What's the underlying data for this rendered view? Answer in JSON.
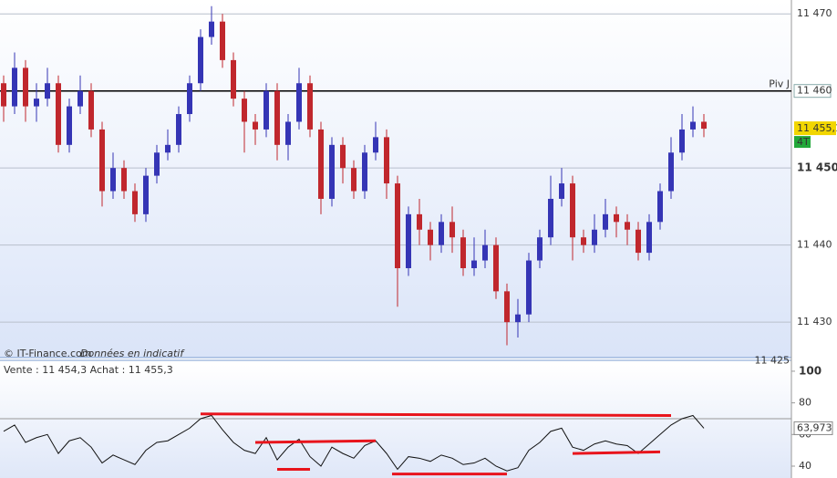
{
  "header": {
    "quote_text": "Vente : 11 454,3 Achat : 11 455,3",
    "source": "© IT-Finance.com",
    "disclaimer": "Données en indicatif"
  },
  "chart_data": [
    {
      "type": "candlestick",
      "open": [
        11461,
        11458,
        11463,
        11458,
        11459,
        11461,
        11453,
        11458,
        11460,
        11455,
        11447,
        11450,
        11447,
        11444,
        11449,
        11452,
        11453,
        11457,
        11461,
        11467,
        11469,
        11464,
        11459,
        11456,
        11455,
        11460,
        11453,
        11456,
        11461,
        11455,
        11446,
        11453,
        11450,
        11447,
        11452,
        11454,
        11448,
        11437,
        11444,
        11442,
        11440,
        11443,
        11441,
        11437,
        11438,
        11440,
        11434,
        11430,
        11431,
        11438,
        11441,
        11446,
        11448,
        11441,
        11440,
        11442,
        11444,
        11443,
        11442,
        11439,
        11443,
        11447,
        11452,
        11455,
        11456
      ],
      "high": [
        11462,
        11465,
        11464,
        11461,
        11463,
        11462,
        11459,
        11462,
        11461,
        11456,
        11452,
        11451,
        11448,
        11450,
        11453,
        11455,
        11458,
        11462,
        11468,
        11471,
        11470,
        11465,
        11460,
        11457,
        11461,
        11461,
        11457,
        11463,
        11462,
        11456,
        11454,
        11454,
        11451,
        11453,
        11456,
        11455,
        11449,
        11445,
        11446,
        11443,
        11444,
        11445,
        11442,
        11441,
        11442,
        11441,
        11435,
        11433,
        11439,
        11442,
        11449,
        11450,
        11449,
        11442,
        11444,
        11446,
        11445,
        11444,
        11443,
        11444,
        11448,
        11454,
        11457,
        11458,
        11457
      ],
      "low": [
        11456,
        11457,
        11456,
        11456,
        11458,
        11452,
        11452,
        11457,
        11454,
        11445,
        11446,
        11446,
        11443,
        11443,
        11448,
        11451,
        11452,
        11456,
        11460,
        11466,
        11463,
        11458,
        11452,
        11453,
        11454,
        11451,
        11451,
        11455,
        11454,
        11444,
        11445,
        11448,
        11446,
        11446,
        11451,
        11446,
        11432,
        11436,
        11440,
        11438,
        11439,
        11439,
        11436,
        11436,
        11437,
        11433,
        11427,
        11428,
        11430,
        11437,
        11440,
        11445,
        11438,
        11439,
        11439,
        11441,
        11441,
        11440,
        11438,
        11438,
        11442,
        11446,
        11451,
        11454,
        11454
      ],
      "close": [
        11458,
        11463,
        11458,
        11459,
        11461,
        11453,
        11458,
        11460,
        11455,
        11447,
        11450,
        11447,
        11444,
        11449,
        11452,
        11453,
        11457,
        11461,
        11467,
        11469,
        11464,
        11459,
        11456,
        11455,
        11460,
        11453,
        11456,
        11461,
        11455,
        11446,
        11453,
        11450,
        11447,
        11452,
        11454,
        11448,
        11437,
        11444,
        11442,
        11440,
        11443,
        11441,
        11437,
        11438,
        11440,
        11434,
        11430,
        11431,
        11438,
        11441,
        11446,
        11448,
        11441,
        11440,
        11442,
        11444,
        11443,
        11442,
        11439,
        11443,
        11447,
        11452,
        11455,
        11456,
        11455.1
      ],
      "up_color": "#3535b5",
      "down_color": "#c0272d",
      "ylim": [
        11425.4,
        11471.8
      ],
      "yticks": [
        {
          "value": 11470,
          "label": "11 470"
        },
        {
          "value": 11450,
          "label": "11 450"
        },
        {
          "value": 11440,
          "label": "11 440"
        },
        {
          "value": 11430,
          "label": "11 430"
        }
      ],
      "bottom_tick": {
        "value": 11425,
        "label": "11 425"
      },
      "grid": true,
      "reference_line": {
        "label": "Piv J",
        "value": 11460,
        "value_label": "11 460"
      },
      "last_price": {
        "value": 11455.1,
        "label": "11 455,1"
      },
      "period_label": "4T"
    },
    {
      "type": "line",
      "values": [
        62,
        66,
        55,
        58,
        60,
        48,
        56,
        58,
        52,
        42,
        47,
        44,
        41,
        50,
        55,
        56,
        60,
        64,
        70,
        72,
        63,
        55,
        50,
        48,
        58,
        44,
        52,
        57,
        46,
        40,
        52,
        48,
        45,
        53,
        56,
        48,
        38,
        46,
        45,
        43,
        47,
        45,
        41,
        42,
        45,
        40,
        37,
        39,
        50,
        55,
        62,
        64,
        52,
        50,
        54,
        56,
        54,
        53,
        48,
        54,
        60,
        66,
        70,
        72,
        63.973
      ],
      "color": "#111111",
      "ylim": [
        32.5,
        104
      ],
      "yticks": [
        100,
        80,
        60,
        40
      ],
      "level": 70,
      "last_value": {
        "value": 63.973,
        "label": "63,973"
      },
      "trendline_color": "#e8141c",
      "trendlines": [
        {
          "x": [
            18,
            61
          ],
          "y": [
            73,
            72
          ]
        },
        {
          "x": [
            23,
            34
          ],
          "y": [
            55,
            56
          ]
        },
        {
          "x": [
            25,
            28
          ],
          "y": [
            38,
            38
          ]
        },
        {
          "x": [
            35.5,
            46
          ],
          "y": [
            35,
            35
          ]
        },
        {
          "x": [
            52,
            60
          ],
          "y": [
            48,
            49
          ]
        }
      ]
    }
  ]
}
